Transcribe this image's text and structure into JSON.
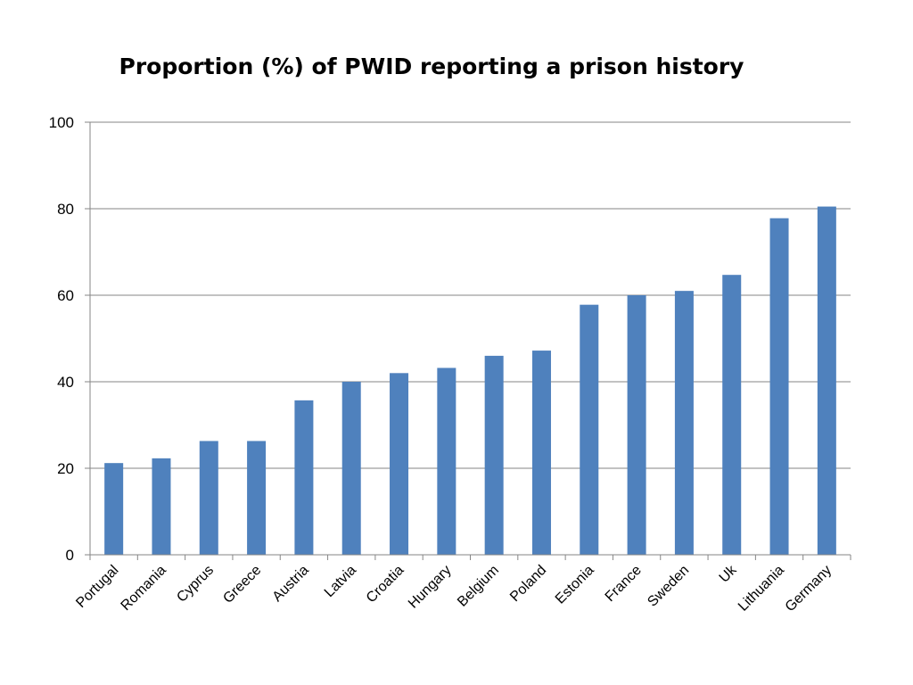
{
  "chart_data": {
    "type": "bar",
    "title": "Proportion (%) of PWID reporting a prison history",
    "xlabel": "",
    "ylabel": "",
    "categories": [
      "Portugal",
      "Romania",
      "Cyprus",
      "Greece",
      "Austria",
      "Latvia",
      "Croatia",
      "Hungary",
      "Belgium",
      "Poland",
      "Estonia",
      "France",
      "Sweden",
      "Uk",
      "Lithuania",
      "Germany"
    ],
    "values": [
      21.2,
      22.3,
      26.3,
      26.3,
      35.7,
      40.0,
      42.0,
      43.2,
      46.0,
      47.2,
      57.8,
      60.0,
      61.0,
      64.7,
      77.8,
      80.5
    ],
    "ylim": [
      0,
      100
    ],
    "yticks": [
      0,
      20,
      40,
      60,
      80,
      100
    ],
    "grid": true,
    "legend": "none",
    "bar_color": "#4f81bd",
    "grid_color": "#868686"
  }
}
